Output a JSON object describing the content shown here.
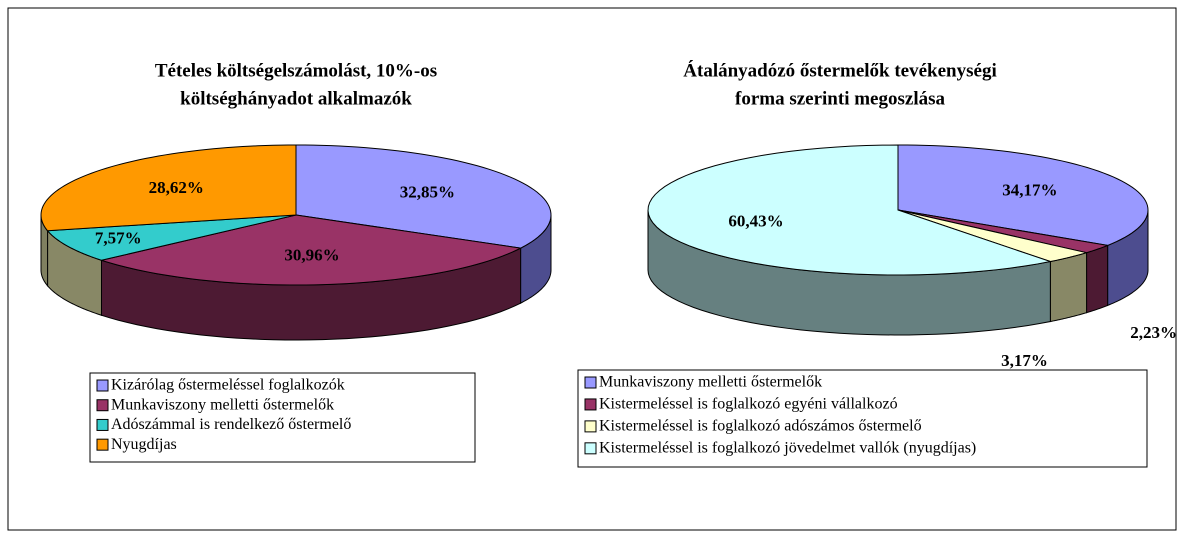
{
  "chart_data": [
    {
      "type": "pie",
      "title": [
        "Tételes költségelszámolást, 10%-os",
        "költséghányadot alkalmazók"
      ],
      "categories": [
        "Kizárólag őstermeléssel foglalkozók",
        "Munkaviszony melletti őstermelők",
        "Adószámmal is rendelkező őstermelő",
        "Nyugdíjas"
      ],
      "values": [
        32.85,
        30.96,
        7.57,
        28.62
      ],
      "value_labels": [
        "32,85%",
        "30,96%",
        "7,57%",
        "28,62%"
      ],
      "colors": [
        "#9999ff",
        "#993366",
        "#33cccc",
        "#ff9900"
      ],
      "side_colors": [
        "#4d4d8f",
        "#4d1a33",
        "#888866",
        "#808060"
      ]
    },
    {
      "type": "pie",
      "title": [
        "Átalányadózó őstermelők tevékenységi",
        "forma szerinti megoszlása"
      ],
      "categories": [
        "Munkaviszony melletti őstermelők",
        "Kistermeléssel is foglalkozó egyéni vállalkozó",
        "Kistermeléssel is foglalkozó adószámos őstermelő",
        "Kistermeléssel is foglalkozó jövedelmet vallók (nyugdíjas)"
      ],
      "values": [
        34.17,
        2.23,
        3.17,
        60.43
      ],
      "value_labels": [
        "34,17%",
        "2,23%",
        "3,17%",
        "60,43%"
      ],
      "colors": [
        "#9999ff",
        "#993366",
        "#ffffcc",
        "#ccffff"
      ],
      "side_colors": [
        "#4d4d8f",
        "#4d1a33",
        "#888866",
        "#668080"
      ]
    }
  ]
}
